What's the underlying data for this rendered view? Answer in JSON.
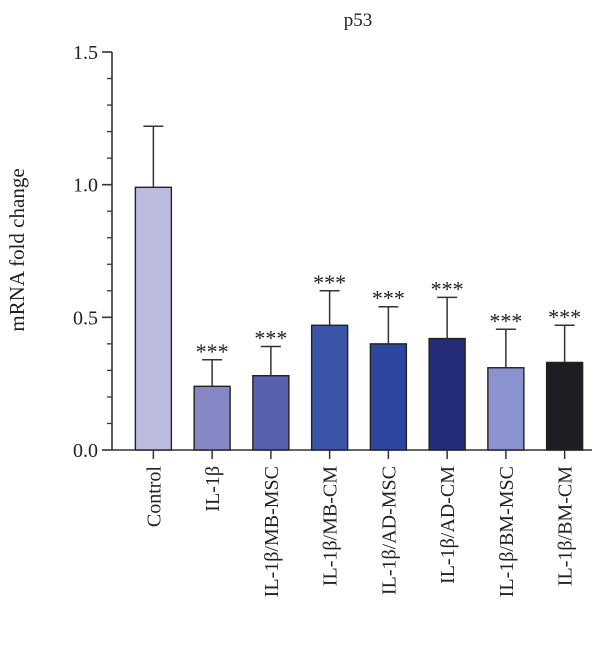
{
  "chart_data": {
    "type": "bar",
    "title": "p53",
    "ylabel": "mRNA fold change",
    "xlabel": "",
    "ylim": [
      0,
      1.5
    ],
    "yticks": [
      "0.0",
      "0.5",
      "1.0",
      "1.5"
    ],
    "categories": [
      "Control",
      "IL-1β",
      "IL-1β/MB-MSC",
      "IL-1β/MB-CM",
      "IL-1β/AD-MSC",
      "IL-1β/AD-CM",
      "IL-1β/BM-MSC",
      "IL-1β/BM-CM"
    ],
    "values": [
      0.99,
      0.24,
      0.28,
      0.47,
      0.4,
      0.42,
      0.31,
      0.33
    ],
    "errors": [
      0.23,
      0.1,
      0.11,
      0.13,
      0.14,
      0.155,
      0.145,
      0.14
    ],
    "annotations": [
      "",
      "***",
      "***",
      "***",
      "***",
      "***",
      "***",
      "***"
    ],
    "colors": [
      "#bdbbdf",
      "#8688c6",
      "#5a60b0",
      "#3a55a8",
      "#2d46a0",
      "#242b78",
      "#8a93cf",
      "#1e1d21"
    ]
  }
}
